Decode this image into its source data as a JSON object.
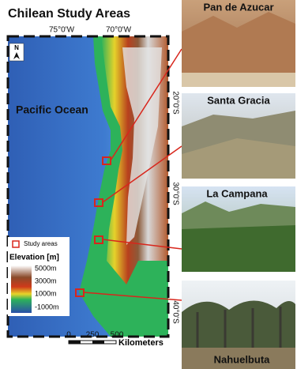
{
  "title": "Chilean Study Areas",
  "map": {
    "lon_labels": [
      "75°0'W",
      "70°0'W"
    ],
    "lat_labels": [
      "20°0'S",
      "30°0'S",
      "40°0'S"
    ],
    "ocean_label": "Pacific Ocean",
    "north": "N"
  },
  "legend": {
    "study_areas": "Study areas",
    "elevation_title": "Elevation [m]",
    "elevation_labels": [
      "5000m",
      "3000m",
      "1000m",
      "-1000m"
    ]
  },
  "scale_bar": {
    "labels": [
      "0",
      "250",
      "500"
    ],
    "unit": "Kilometers"
  },
  "photos": [
    "Pan de Azucar",
    "Santa Gracia",
    "La Campana",
    "Nahuelbuta"
  ]
}
